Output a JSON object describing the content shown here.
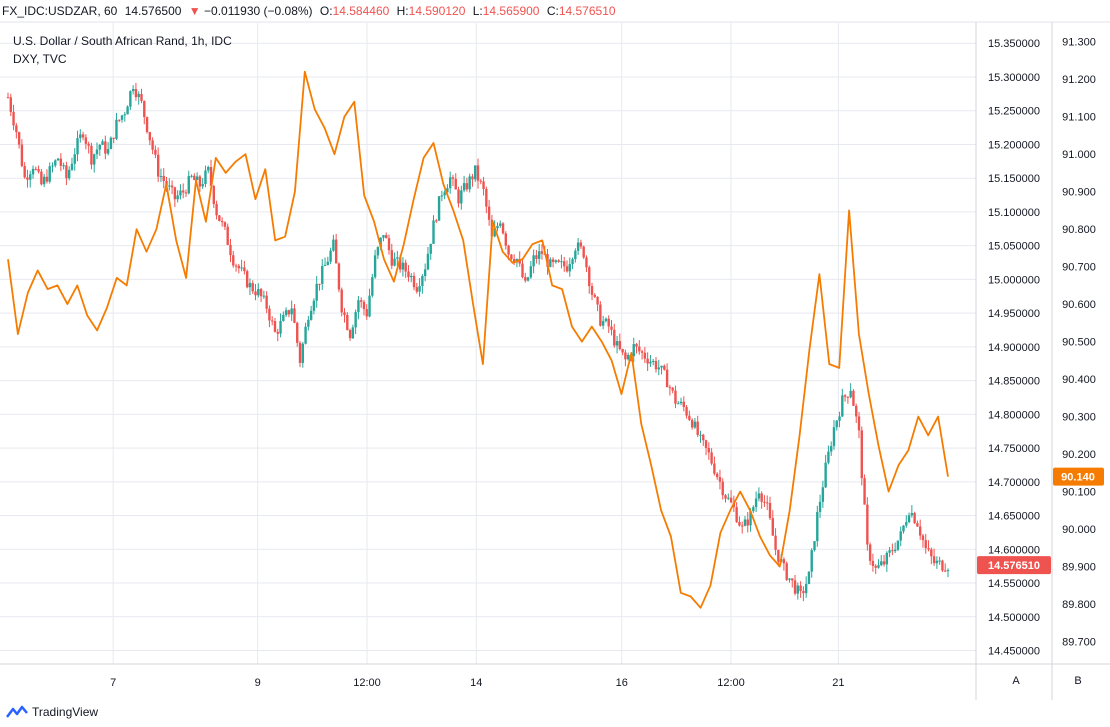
{
  "header": {
    "symbol": "FX_IDC:USDZAR, 60",
    "last": "14.576500",
    "change_icon": "triangle-down-icon",
    "change": "−0.011930 (−0.08%)",
    "o_label": "O:",
    "o_value": "14.584460",
    "h_label": "H:",
    "h_value": "14.590120",
    "l_label": "L:",
    "l_value": "14.565900",
    "c_label": "C:",
    "c_value": "14.576510"
  },
  "legend": {
    "main_series": "U.S. Dollar / South African Rand, 1h, IDC",
    "compare_series": "DXY, TVC"
  },
  "footer": {
    "logo_text": "TradingView",
    "axis_button_a": "A",
    "axis_button_b": "B"
  },
  "colors": {
    "up_candle": "#26a69a",
    "down_candle": "#ef5350",
    "dxy_line": "#f57c00",
    "grid": "#e6e9ef",
    "last_price_badge": "#ef5350",
    "dxy_badge": "#f57c00"
  },
  "chart_data": {
    "type": "line",
    "x_tick_labels": [
      "7",
      "9",
      "12:00",
      "14",
      "16",
      "12:00",
      "21"
    ],
    "y_left_ticks": [
      "15.350000",
      "15.300000",
      "15.250000",
      "15.200000",
      "15.150000",
      "15.100000",
      "15.050000",
      "15.000000",
      "14.950000",
      "14.900000",
      "14.850000",
      "14.800000",
      "14.750000",
      "14.700000",
      "14.650000",
      "14.600000",
      "14.550000",
      "14.500000",
      "14.450000"
    ],
    "y_right_ticks": [
      "91.300",
      "91.200",
      "91.100",
      "91.000",
      "90.900",
      "90.800",
      "90.700",
      "90.600",
      "90.500",
      "90.400",
      "90.300",
      "90.200",
      "90.100",
      "90.000",
      "89.900",
      "89.800",
      "89.700"
    ],
    "ylim_usdzar": [
      14.43,
      15.38
    ],
    "ylim_dxy": [
      89.64,
      91.35
    ],
    "last_usdzar_label": "14.576510",
    "last_dxy_label": "90.140",
    "series": [
      {
        "name": "U.S. Dollar / South African Rand, 1h, IDC",
        "axis": "left",
        "values": [
          15.27,
          15.22,
          15.15,
          15.17,
          15.14,
          15.16,
          15.18,
          15.15,
          15.19,
          15.22,
          15.18,
          15.2,
          15.19,
          15.23,
          15.25,
          15.29,
          15.26,
          15.21,
          15.16,
          15.14,
          15.12,
          15.13,
          15.15,
          15.14,
          15.16,
          15.1,
          15.07,
          15.03,
          15.01,
          14.99,
          14.98,
          14.96,
          14.92,
          14.94,
          14.96,
          14.88,
          14.95,
          14.99,
          15.02,
          15.05,
          14.96,
          14.92,
          14.97,
          14.95,
          15.03,
          15.07,
          15.03,
          15.02,
          15.01,
          14.99,
          15.02,
          15.08,
          15.13,
          15.15,
          15.12,
          15.14,
          15.16,
          15.13,
          15.06,
          15.09,
          15.04,
          15.03,
          14.99,
          15.03,
          15.04,
          15.02,
          15.02,
          15.02,
          15.05,
          15.04,
          14.98,
          14.94,
          14.93,
          14.9,
          14.88,
          14.9,
          14.89,
          14.88,
          14.87,
          14.85,
          14.82,
          14.81,
          14.79,
          14.76,
          14.74,
          14.71,
          14.68,
          14.66,
          14.63,
          14.65,
          14.69,
          14.66,
          14.6,
          14.57,
          14.55,
          14.53,
          14.56,
          14.65,
          14.72,
          14.78,
          14.82,
          14.84,
          14.77,
          14.6,
          14.57,
          14.58,
          14.6,
          14.62,
          14.66,
          14.64,
          14.6,
          14.58,
          14.577
        ]
      },
      {
        "name": "DXY, TVC",
        "axis": "right",
        "values": [
          90.72,
          90.52,
          90.63,
          90.69,
          90.64,
          90.65,
          90.6,
          90.65,
          90.57,
          90.53,
          90.59,
          90.67,
          90.65,
          90.8,
          90.74,
          90.8,
          90.92,
          90.77,
          90.67,
          90.93,
          90.82,
          90.99,
          90.95,
          90.98,
          91.0,
          90.88,
          90.96,
          90.77,
          90.78,
          90.9,
          91.22,
          91.12,
          91.07,
          91.0,
          91.1,
          91.14,
          90.89,
          90.82,
          90.72,
          90.66,
          90.76,
          90.88,
          90.99,
          91.03,
          90.92,
          90.85,
          90.77,
          90.6,
          90.44,
          90.82,
          90.74,
          90.71,
          90.72,
          90.76,
          90.77,
          90.65,
          90.64,
          90.54,
          90.5,
          90.54,
          90.5,
          90.45,
          90.36,
          90.47,
          90.28,
          90.17,
          90.05,
          89.98,
          89.83,
          89.82,
          89.79,
          89.85,
          89.99,
          90.05,
          90.1,
          90.05,
          89.98,
          89.93,
          89.9,
          90.05,
          90.25,
          90.48,
          90.68,
          90.44,
          90.43,
          90.85,
          90.52,
          90.36,
          90.22,
          90.1,
          90.17,
          90.21,
          90.3,
          90.25,
          90.3,
          90.14
        ]
      }
    ],
    "grid": true
  }
}
